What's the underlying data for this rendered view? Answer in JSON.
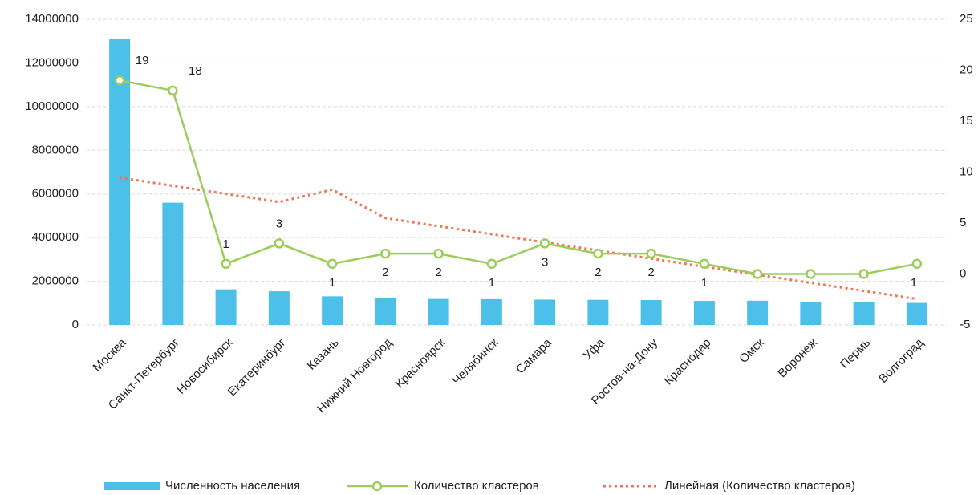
{
  "chart_data": {
    "type": "bar",
    "categories": [
      "Москва",
      "Санкт-Петербург",
      "Новосибирск",
      "Екатеринбург",
      "Казань",
      "Нижний Новгород",
      "Красноярск",
      "Челябинск",
      "Самара",
      "Уфа",
      "Ростов-на-Дону",
      "Краснодар",
      "Омск",
      "Воронеж",
      "Пермь",
      "Волгоград"
    ],
    "series": [
      {
        "name": "Численность населения",
        "type": "bar",
        "color": "#4dc0ea",
        "axis": "y",
        "values": [
          13100000,
          5600000,
          1630000,
          1540000,
          1310000,
          1220000,
          1190000,
          1180000,
          1160000,
          1150000,
          1140000,
          1100000,
          1110000,
          1050000,
          1030000,
          1010000
        ]
      },
      {
        "name": "Количество кластеров",
        "type": "line",
        "color": "#9acd5a",
        "axis": "y2",
        "values": [
          19,
          18,
          1,
          3,
          1,
          2,
          2,
          1,
          3,
          2,
          2,
          1,
          0,
          0,
          0,
          1
        ],
        "value_labels": [
          "19",
          "18",
          "1",
          "3",
          "1",
          "2",
          "2",
          "1",
          "3",
          "2",
          "2",
          "1",
          null,
          null,
          null,
          "1"
        ]
      },
      {
        "name": "Линейная (Количество кластеров)",
        "type": "trend",
        "color": "#f2734f",
        "axis": "y2",
        "values": [
          9.46,
          8.66,
          7.87,
          7.07,
          8.28,
          5.49,
          4.69,
          3.9,
          3.1,
          2.31,
          1.51,
          0.72,
          -0.07,
          -0.87,
          -1.66,
          -2.46
        ]
      }
    ],
    "ylim": [
      0,
      14000000
    ],
    "yticks": [
      0,
      2000000,
      4000000,
      6000000,
      8000000,
      10000000,
      12000000,
      14000000
    ],
    "y2lim": [
      -5,
      25
    ],
    "y2ticks": [
      -5,
      0,
      5,
      10,
      15,
      20,
      25
    ],
    "grid": true,
    "legend": "bottom"
  }
}
